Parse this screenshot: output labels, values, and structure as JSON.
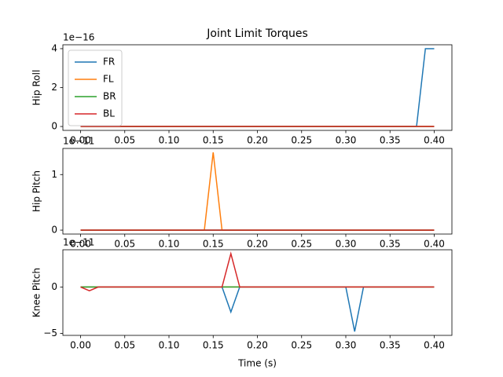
{
  "chart_data": [
    {
      "type": "line",
      "title": "Joint Limit Torques",
      "ylabel": "Hip Roll",
      "y_offset_label": "1e−16",
      "x": [
        0.0,
        0.01,
        0.02,
        0.03,
        0.04,
        0.05,
        0.06,
        0.07,
        0.08,
        0.09,
        0.1,
        0.11,
        0.12,
        0.13,
        0.14,
        0.15,
        0.16,
        0.17,
        0.18,
        0.19,
        0.2,
        0.21,
        0.22,
        0.23,
        0.24,
        0.25,
        0.26,
        0.27,
        0.28,
        0.29,
        0.3,
        0.31,
        0.32,
        0.33,
        0.34,
        0.35,
        0.36,
        0.37,
        0.38,
        0.39,
        0.4
      ],
      "xlim": [
        -0.02,
        0.42
      ],
      "xticks": [
        {
          "value": 0,
          "label": "0.00"
        },
        {
          "value": 0.05,
          "label": "0.05"
        },
        {
          "value": 0.1,
          "label": "0.10"
        },
        {
          "value": 0.15,
          "label": "0.15"
        },
        {
          "value": 0.2,
          "label": "0.20"
        },
        {
          "value": 0.25,
          "label": "0.25"
        },
        {
          "value": 0.3,
          "label": "0.30"
        },
        {
          "value": 0.35,
          "label": "0.35"
        },
        {
          "value": 0.4,
          "label": "0.40"
        }
      ],
      "ylim": [
        -0.2,
        4.2
      ],
      "yticks": [
        0,
        2,
        4
      ],
      "legend": "upper left",
      "series": [
        {
          "name": "FR",
          "color": "#1f77b4",
          "values": [
            0,
            0,
            0,
            0,
            0,
            0,
            0,
            0,
            0,
            0,
            0,
            0,
            0,
            0,
            0,
            0,
            0,
            0,
            0,
            0,
            0,
            0,
            0,
            0,
            0,
            0,
            0,
            0,
            0,
            0,
            0,
            0,
            0,
            0,
            0,
            0,
            0,
            0,
            0,
            4,
            4
          ]
        },
        {
          "name": "FL",
          "color": "#ff7f0e",
          "values": [
            0,
            0,
            0,
            0,
            0,
            0,
            0,
            0,
            0,
            0,
            0,
            0,
            0,
            0,
            0,
            0,
            0,
            0,
            0,
            0,
            0,
            0,
            0,
            0,
            0,
            0,
            0,
            0,
            0,
            0,
            0,
            0,
            0,
            0,
            0,
            0,
            0,
            0,
            0,
            0,
            0
          ]
        },
        {
          "name": "BR",
          "color": "#2ca02c",
          "values": [
            0,
            0,
            0,
            0,
            0,
            0,
            0,
            0,
            0,
            0,
            0,
            0,
            0,
            0,
            0,
            0,
            0,
            0,
            0,
            0,
            0,
            0,
            0,
            0,
            0,
            0,
            0,
            0,
            0,
            0,
            0,
            0,
            0,
            0,
            0,
            0,
            0,
            0,
            0,
            0,
            0
          ]
        },
        {
          "name": "BL",
          "color": "#d62728",
          "values": [
            0,
            0,
            0,
            0,
            0,
            0,
            0,
            0,
            0,
            0,
            0,
            0,
            0,
            0,
            0,
            0,
            0,
            0,
            0,
            0,
            0,
            0,
            0,
            0,
            0,
            0,
            0,
            0,
            0,
            0,
            0,
            0,
            0,
            0,
            0,
            0,
            0,
            0,
            0,
            0,
            0
          ]
        }
      ]
    },
    {
      "type": "line",
      "ylabel": "Hip Pitch",
      "y_offset_label": "1e−11",
      "x": [
        0.0,
        0.01,
        0.02,
        0.03,
        0.04,
        0.05,
        0.06,
        0.07,
        0.08,
        0.09,
        0.1,
        0.11,
        0.12,
        0.13,
        0.14,
        0.15,
        0.16,
        0.17,
        0.18,
        0.19,
        0.2,
        0.21,
        0.22,
        0.23,
        0.24,
        0.25,
        0.26,
        0.27,
        0.28,
        0.29,
        0.3,
        0.31,
        0.32,
        0.33,
        0.34,
        0.35,
        0.36,
        0.37,
        0.38,
        0.39,
        0.4
      ],
      "xlim": [
        -0.02,
        0.42
      ],
      "xticks": [
        {
          "value": 0,
          "label": "0.00"
        },
        {
          "value": 0.05,
          "label": "0.05"
        },
        {
          "value": 0.1,
          "label": "0.10"
        },
        {
          "value": 0.15,
          "label": "0.15"
        },
        {
          "value": 0.2,
          "label": "0.20"
        },
        {
          "value": 0.25,
          "label": "0.25"
        },
        {
          "value": 0.3,
          "label": "0.30"
        },
        {
          "value": 0.35,
          "label": "0.35"
        },
        {
          "value": 0.4,
          "label": "0.40"
        }
      ],
      "ylim": [
        -0.07,
        1.47
      ],
      "yticks": [
        0,
        1
      ],
      "series": [
        {
          "color": "#1f77b4",
          "values": [
            0,
            0,
            0,
            0,
            0,
            0,
            0,
            0,
            0,
            0,
            0,
            0,
            0,
            0,
            0,
            0,
            0,
            0,
            0,
            0,
            0,
            0,
            0,
            0,
            0,
            0,
            0,
            0,
            0,
            0,
            0,
            0,
            0,
            0,
            0,
            0,
            0,
            0,
            0,
            0,
            0
          ]
        },
        {
          "color": "#ff7f0e",
          "values": [
            0,
            0,
            0,
            0,
            0,
            0,
            0,
            0,
            0,
            0,
            0,
            0,
            0,
            0,
            0,
            1.4,
            0,
            0,
            0,
            0,
            0,
            0,
            0,
            0,
            0,
            0,
            0,
            0,
            0,
            0,
            0,
            0,
            0,
            0,
            0,
            0,
            0,
            0,
            0,
            0,
            0
          ]
        },
        {
          "color": "#2ca02c",
          "values": [
            0,
            0,
            0,
            0,
            0,
            0,
            0,
            0,
            0,
            0,
            0,
            0,
            0,
            0,
            0,
            0,
            0,
            0,
            0,
            0,
            0,
            0,
            0,
            0,
            0,
            0,
            0,
            0,
            0,
            0,
            0,
            0,
            0,
            0,
            0,
            0,
            0,
            0,
            0,
            0,
            0
          ]
        },
        {
          "color": "#d62728",
          "values": [
            0,
            0,
            0,
            0,
            0,
            0,
            0,
            0,
            0,
            0,
            0,
            0,
            0,
            0,
            0,
            0,
            0,
            0,
            0,
            0,
            0,
            0,
            0,
            0,
            0,
            0,
            0,
            0,
            0,
            0,
            0,
            0,
            0,
            0,
            0,
            0,
            0,
            0,
            0,
            0,
            0
          ]
        }
      ]
    },
    {
      "type": "line",
      "ylabel": "Knee Pitch",
      "xlabel": "Time (s)",
      "y_offset_label": "1e−11",
      "x": [
        0.0,
        0.01,
        0.02,
        0.03,
        0.04,
        0.05,
        0.06,
        0.07,
        0.08,
        0.09,
        0.1,
        0.11,
        0.12,
        0.13,
        0.14,
        0.15,
        0.16,
        0.17,
        0.18,
        0.19,
        0.2,
        0.21,
        0.22,
        0.23,
        0.24,
        0.25,
        0.26,
        0.27,
        0.28,
        0.29,
        0.3,
        0.31,
        0.32,
        0.33,
        0.34,
        0.35,
        0.36,
        0.37,
        0.38,
        0.39,
        0.4
      ],
      "xlim": [
        -0.02,
        0.42
      ],
      "xticks": [
        {
          "value": 0,
          "label": "0.00"
        },
        {
          "value": 0.05,
          "label": "0.05"
        },
        {
          "value": 0.1,
          "label": "0.10"
        },
        {
          "value": 0.15,
          "label": "0.15"
        },
        {
          "value": 0.2,
          "label": "0.20"
        },
        {
          "value": 0.25,
          "label": "0.25"
        },
        {
          "value": 0.3,
          "label": "0.30"
        },
        {
          "value": 0.35,
          "label": "0.35"
        },
        {
          "value": 0.4,
          "label": "0.40"
        }
      ],
      "ylim": [
        -5.22,
        4.02
      ],
      "yticks": [
        {
          "value": -5,
          "label": "−5"
        },
        0
      ],
      "series": [
        {
          "color": "#1f77b4",
          "values": [
            0,
            0,
            0,
            0,
            0,
            0,
            0,
            0,
            0,
            0,
            0,
            0,
            0,
            0,
            0,
            0,
            0,
            -2.7,
            0,
            0,
            0,
            0,
            0,
            0,
            0,
            0,
            0,
            0,
            0,
            0,
            0,
            -4.8,
            0,
            0,
            0,
            0,
            0,
            0,
            0,
            0,
            0
          ]
        },
        {
          "color": "#ff7f0e",
          "values": [
            0,
            0,
            0,
            0,
            0,
            0,
            0,
            0,
            0,
            0,
            0,
            0,
            0,
            0,
            0,
            0,
            0,
            0,
            0,
            0,
            0,
            0,
            0,
            0,
            0,
            0,
            0,
            0,
            0,
            0,
            0,
            0,
            0,
            0,
            0,
            0,
            0,
            0,
            0,
            0,
            0
          ]
        },
        {
          "color": "#2ca02c",
          "values": [
            0,
            0,
            0,
            0,
            0,
            0,
            0,
            0,
            0,
            0,
            0,
            0,
            0,
            0,
            0,
            0,
            0,
            0,
            0,
            0,
            0,
            0,
            0,
            0,
            0,
            0,
            0,
            0,
            0,
            0,
            0,
            0,
            0,
            0,
            0,
            0,
            0,
            0,
            0,
            0,
            0
          ]
        },
        {
          "color": "#d62728",
          "values": [
            0,
            -0.4,
            0,
            0,
            0,
            0,
            0,
            0,
            0,
            0,
            0,
            0,
            0,
            0,
            0,
            0,
            0,
            3.6,
            0,
            0,
            0,
            0,
            0,
            0,
            0,
            0,
            0,
            0,
            0,
            0,
            0,
            0,
            0,
            0,
            0,
            0,
            0,
            0,
            0,
            0,
            0
          ]
        }
      ]
    }
  ]
}
